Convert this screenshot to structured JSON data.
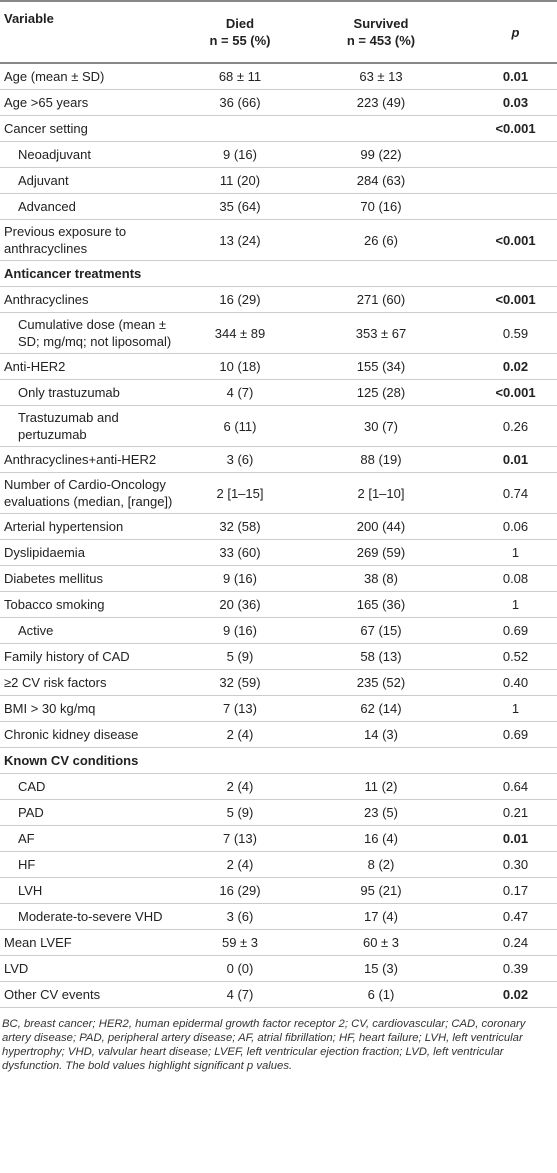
{
  "table": {
    "header": [
      "Variable",
      "Died",
      "n = 55 (%)",
      "Survived",
      "n = 453 (%)",
      "p"
    ],
    "rows": [
      {
        "variable": "Age (mean ± SD)",
        "died": "68 ± 11",
        "survived": "63 ± 13",
        "p": "0.01",
        "significant": true
      },
      {
        "variable": "Age >65 years",
        "died": "36 (66)",
        "survived": "223 (49)",
        "p": "0.03",
        "significant": true
      },
      {
        "variable": "Cancer setting",
        "p": "<0.001",
        "significant": true
      },
      {
        "variable": "Neoadjuvant",
        "died": "9 (16)",
        "survived": "99 (22)",
        "indent": true
      },
      {
        "variable": "Adjuvant",
        "died": "11 (20)",
        "survived": "284 (63)",
        "indent": true
      },
      {
        "variable": "Advanced",
        "died": "35 (64)",
        "survived": "70 (16)",
        "indent": true
      },
      {
        "variable": "Previous exposure to anthracyclines",
        "died": "13 (24)",
        "survived": "26 (6)",
        "p": "<0.001",
        "significant": true
      },
      {
        "variable": "Anticancer treatments",
        "section": true
      },
      {
        "variable": "Anthracyclines",
        "died": "16 (29)",
        "survived": "271 (60)",
        "p": "<0.001",
        "significant": true
      },
      {
        "variable": "Cumulative dose (mean ± SD; mg/mq; not liposomal)",
        "died": "344 ± 89",
        "survived": "353 ± 67",
        "p": "0.59",
        "indent": true
      },
      {
        "variable": "Anti-HER2",
        "died": "10 (18)",
        "survived": "155 (34)",
        "p": "0.02",
        "significant": true
      },
      {
        "variable": "Only trastuzumab",
        "died": "4 (7)",
        "survived": "125 (28)",
        "p": "<0.001",
        "significant": true,
        "indent": true
      },
      {
        "variable": "Trastuzumab and pertuzumab",
        "died": "6 (11)",
        "survived": "30 (7)",
        "p": "0.26",
        "indent": true
      },
      {
        "variable": "Anthracyclines+anti-HER2",
        "died": "3 (6)",
        "survived": "88 (19)",
        "p": "0.01",
        "significant": true
      },
      {
        "variable": "Number of Cardio-Oncology evaluations (median, [range])",
        "died": "2 [1–15]",
        "survived": "2 [1–10]",
        "p": "0.74"
      },
      {
        "variable": "Arterial hypertension",
        "died": "32 (58)",
        "survived": "200 (44)",
        "p": "0.06"
      },
      {
        "variable": "Dyslipidaemia",
        "died": "33 (60)",
        "survived": "269 (59)",
        "p": "1"
      },
      {
        "variable": "Diabetes mellitus",
        "died": "9 (16)",
        "survived": "38 (8)",
        "p": "0.08"
      },
      {
        "variable": "Tobacco smoking",
        "died": "20 (36)",
        "survived": "165 (36)",
        "p": "1"
      },
      {
        "variable": "Active",
        "died": "9 (16)",
        "survived": "67 (15)",
        "p": "0.69",
        "indent": true
      },
      {
        "variable": "Family history of CAD",
        "died": "5 (9)",
        "survived": "58 (13)",
        "p": "0.52"
      },
      {
        "variable": "≥2 CV risk factors",
        "died": "32 (59)",
        "survived": "235 (52)",
        "p": "0.40"
      },
      {
        "variable": "BMI > 30 kg/mq",
        "died": "7 (13)",
        "survived": "62 (14)",
        "p": "1"
      },
      {
        "variable": "Chronic kidney disease",
        "died": "2 (4)",
        "survived": "14 (3)",
        "p": "0.69"
      },
      {
        "variable": "Known CV conditions",
        "section": true
      },
      {
        "variable": "CAD",
        "died": "2 (4)",
        "survived": "11 (2)",
        "p": "0.64",
        "indent": true
      },
      {
        "variable": "PAD",
        "died": "5 (9)",
        "survived": "23 (5)",
        "p": "0.21",
        "indent": true
      },
      {
        "variable": "AF",
        "died": "7 (13)",
        "survived": "16 (4)",
        "p": "0.01",
        "significant": true,
        "indent": true
      },
      {
        "variable": "HF",
        "died": "2 (4)",
        "survived": "8 (2)",
        "p": "0.30",
        "indent": true
      },
      {
        "variable": "LVH",
        "died": "16 (29)",
        "survived": "95 (21)",
        "p": "0.17",
        "indent": true
      },
      {
        "variable": "Moderate-to-severe VHD",
        "died": "3 (6)",
        "survived": "17 (4)",
        "p": "0.47",
        "indent": true
      },
      {
        "variable": "Mean LVEF",
        "died": "59 ± 3",
        "survived": "60 ± 3",
        "p": "0.24"
      },
      {
        "variable": "LVD",
        "died": "0 (0)",
        "survived": "15 (3)",
        "p": "0.39"
      },
      {
        "variable": "Other CV events",
        "died": "4 (7)",
        "survived": "6 (1)",
        "p": "0.02",
        "significant": true
      }
    ],
    "footnote": "BC, breast cancer; HER2, human epidermal growth factor receptor 2; CV, cardiovascular; CAD, coronary artery disease; PAD, peripheral artery disease; AF, atrial fibrillation; HF, heart failure; LVH, left ventricular hypertrophy; VHD, valvular heart disease; LVEF, left ventricular ejection fraction; LVD, left ventricular dysfunction. The bold values highlight significant p values."
  }
}
